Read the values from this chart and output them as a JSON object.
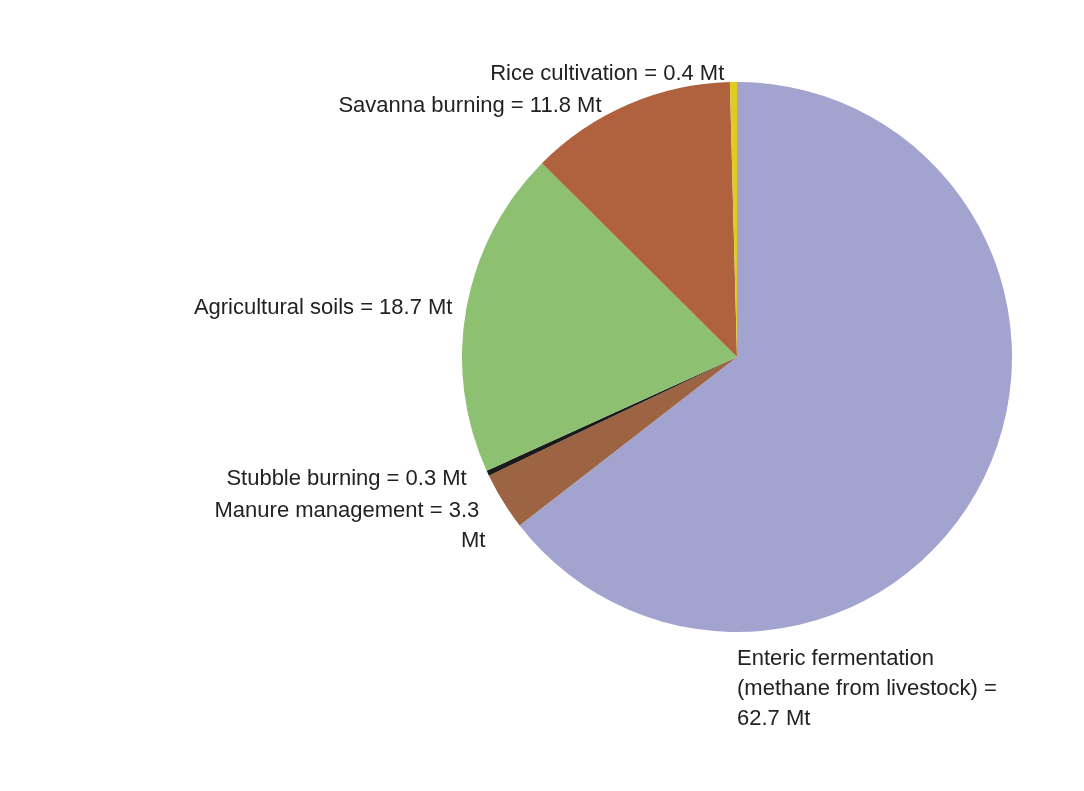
{
  "chart_data": {
    "type": "pie",
    "categories": [
      "Enteric fermentation (methane from livestock)",
      "Manure management",
      "Stubble burning",
      "Agricultural soils",
      "Savanna burning",
      "Rice cultivation"
    ],
    "values": [
      62.7,
      3.3,
      0.3,
      18.7,
      11.8,
      0.4
    ],
    "value_labels": [
      "= 62.7 Mt",
      "= 3.3 Mt",
      "= 0.3 Mt",
      "= 18.7 Mt",
      "= 11.8 Mt",
      "= 0.4 Mt"
    ],
    "colors": [
      "#a3a3d0",
      "#9c6442",
      "#1a1a1a",
      "#8dc070",
      "#b0623f",
      "#e0cc20"
    ]
  }
}
